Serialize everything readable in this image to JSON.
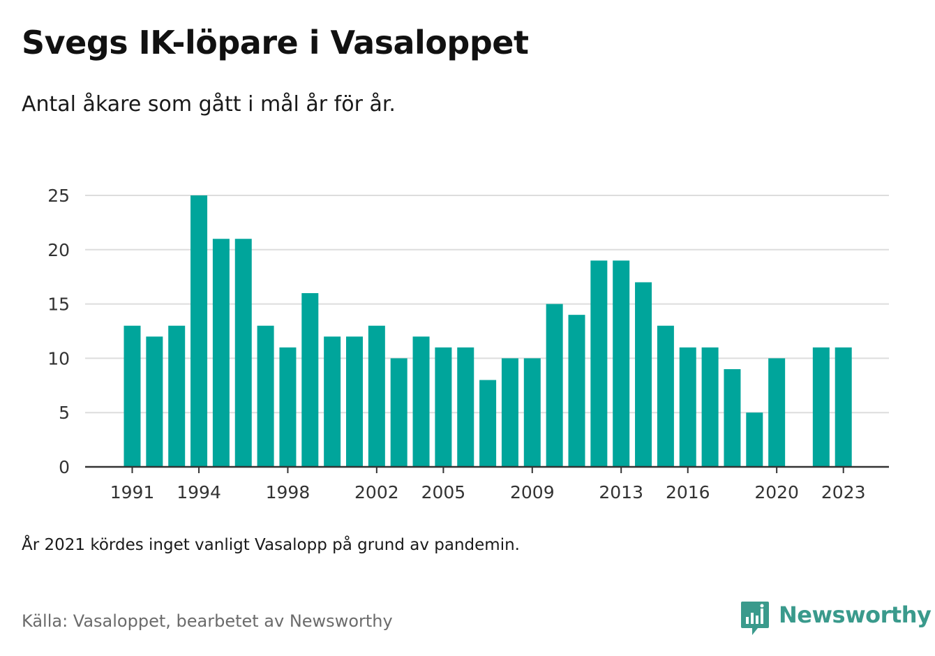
{
  "header": {
    "title": "Svegs IK-löpare i Vasaloppet",
    "subtitle": "Antal åkare som gått i mål år för år."
  },
  "footer": {
    "note": "År 2021 kördes inget vanligt Vasalopp på grund av pandemin.",
    "source": "Källa: Vasaloppet, bearbetet av Newsworthy",
    "brand": "Newsworthy",
    "brand_icon": "newsworthy-logo-icon"
  },
  "colors": {
    "bar": "#00a59b",
    "grid": "#dddddd",
    "axis": "#333333",
    "brand": "#3a9a8c"
  },
  "chart_data": {
    "type": "bar",
    "x": [
      1991,
      1992,
      1993,
      1994,
      1995,
      1996,
      1997,
      1998,
      1999,
      2000,
      2001,
      2002,
      2003,
      2004,
      2005,
      2006,
      2007,
      2008,
      2009,
      2010,
      2011,
      2012,
      2013,
      2014,
      2015,
      2016,
      2017,
      2018,
      2019,
      2020,
      2021,
      2022,
      2023
    ],
    "values": [
      13,
      12,
      13,
      25,
      21,
      21,
      13,
      11,
      16,
      12,
      12,
      13,
      10,
      12,
      11,
      11,
      8,
      10,
      10,
      15,
      14,
      19,
      19,
      17,
      13,
      11,
      11,
      9,
      5,
      10,
      null,
      11,
      11
    ],
    "x_tick_labels": [
      "1991",
      "1994",
      "1998",
      "2002",
      "2005",
      "2009",
      "2013",
      "2016",
      "2020",
      "2023"
    ],
    "y_tick_labels": [
      "0",
      "5",
      "10",
      "15",
      "20",
      "25"
    ],
    "ylim": [
      0,
      25
    ],
    "grid": true,
    "legend": "none"
  }
}
